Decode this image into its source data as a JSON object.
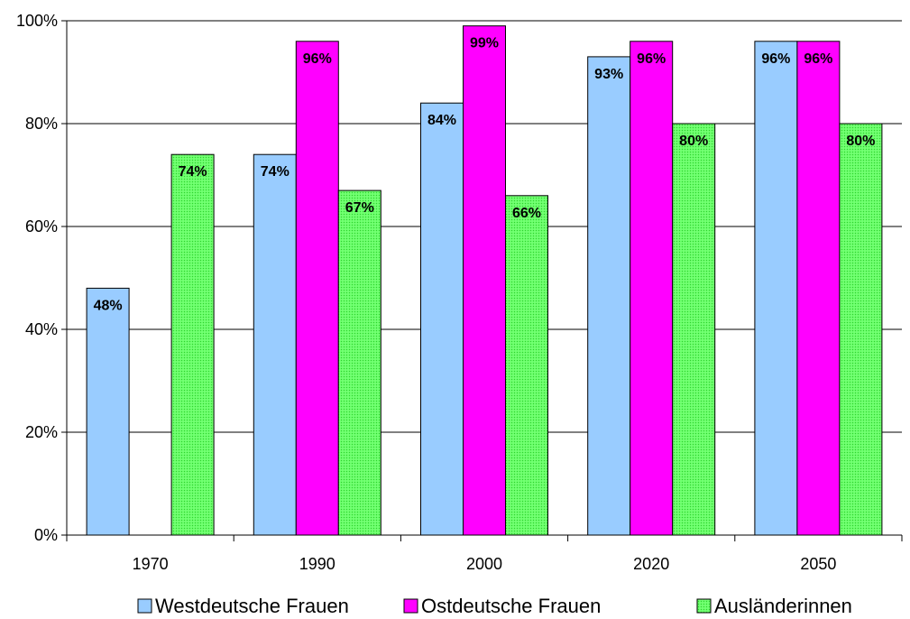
{
  "chart_data": {
    "type": "bar",
    "categories": [
      "1970",
      "1990",
      "2000",
      "2020",
      "2050"
    ],
    "series": [
      {
        "name": "Westdeutsche Frauen",
        "values": [
          48,
          74,
          84,
          93,
          96
        ],
        "labels": [
          "48%",
          "74%",
          "84%",
          "93%",
          "96%"
        ],
        "color": "#99ccff"
      },
      {
        "name": "Ostdeutsche Frauen",
        "values": [
          null,
          96,
          99,
          96,
          96
        ],
        "labels": [
          "",
          "96%",
          "99%",
          "96%",
          "96%"
        ],
        "color": "#ff00ff"
      },
      {
        "name": "Ausländerinnen",
        "values": [
          74,
          67,
          66,
          80,
          80
        ],
        "labels": [
          "74%",
          "67%",
          "66%",
          "80%",
          "80%"
        ],
        "color": "#66ff66"
      }
    ],
    "ylim": [
      0,
      100
    ],
    "yticks": [
      0,
      20,
      40,
      60,
      80,
      100
    ],
    "ytick_labels": [
      "0%",
      "20%",
      "40%",
      "60%",
      "80%",
      "100%"
    ],
    "grid": true,
    "legend_position": "bottom"
  }
}
